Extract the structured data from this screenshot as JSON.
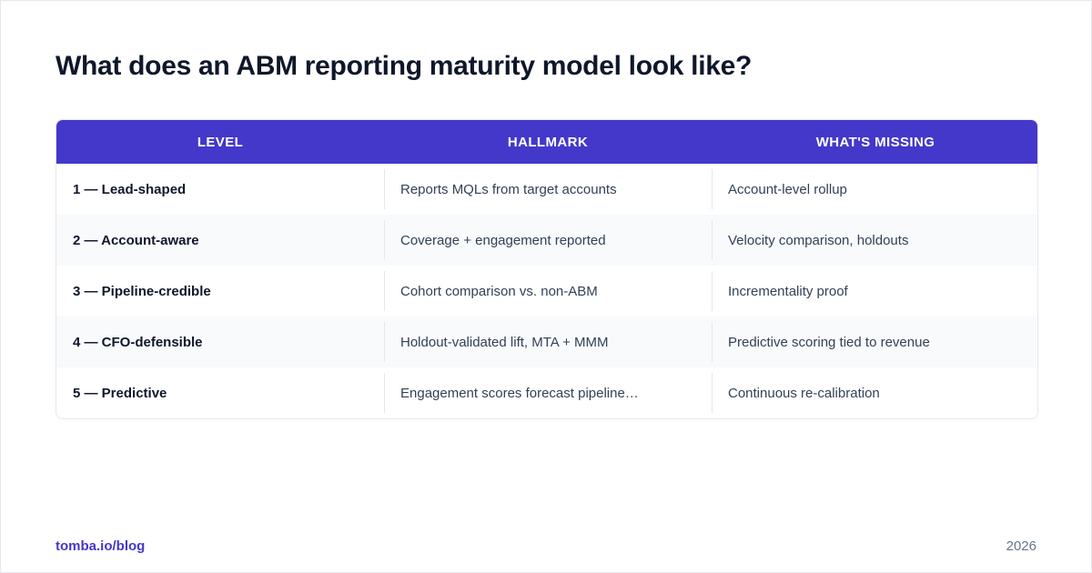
{
  "title": "What does an ABM reporting maturity model look like?",
  "table": {
    "headers": [
      "LEVEL",
      "HALLMARK",
      "WHAT'S MISSING"
    ],
    "rows": [
      [
        "1 — Lead-shaped",
        "Reports MQLs from target accounts",
        "Account-level rollup"
      ],
      [
        "2 — Account-aware",
        "Coverage + engagement reported",
        "Velocity comparison, holdouts"
      ],
      [
        "3 — Pipeline-credible",
        "Cohort comparison vs. non-ABM",
        "Incrementality proof"
      ],
      [
        "4 — CFO-defensible",
        "Holdout-validated lift, MTA + MMM",
        "Predictive scoring tied to revenue"
      ],
      [
        "5 — Predictive",
        "Engagement scores forecast pipeline…",
        "Continuous re-calibration"
      ]
    ]
  },
  "footer": {
    "link": "tomba.io/blog",
    "year": "2026"
  },
  "colors": {
    "accent": "#4338ca",
    "title": "#0f172a",
    "body_text": "#334155",
    "row_alt": "#f8fafc",
    "border": "#e5e7eb",
    "muted": "#64748b"
  }
}
